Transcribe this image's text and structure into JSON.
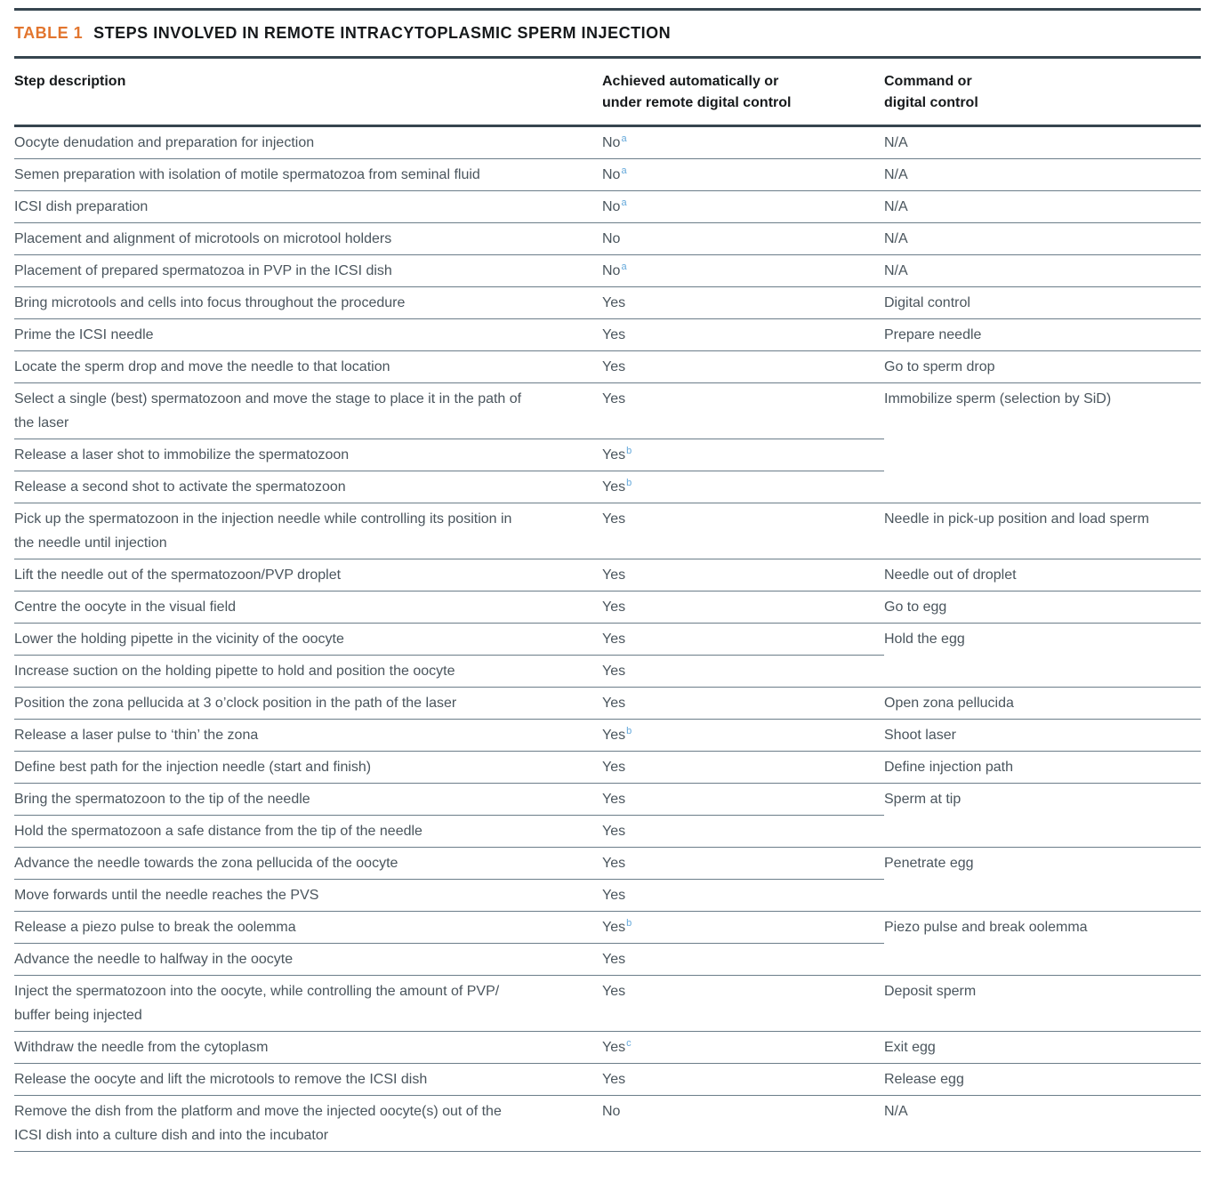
{
  "table": {
    "label": "TABLE 1",
    "title": "STEPS INVOLVED IN REMOTE INTRACYTOPLASMIC SPERM INJECTION",
    "columns": [
      "Step description",
      "Achieved automatically or\nunder remote digital control",
      "Command or\ndigital control"
    ],
    "colors": {
      "accent_orange": "#e2752e",
      "footnote_blue": "#64a8da",
      "rule_dark": "#36454f",
      "rule_light": "#6b7d89",
      "body_text": "#4a555d",
      "heading_text": "#16191b"
    },
    "rows": [
      {
        "step": "Oocyte denudation and preparation for injection",
        "auto": "No",
        "auto_sup": "a",
        "command": "N/A",
        "rowspan": 1
      },
      {
        "step": "Semen preparation with isolation of motile spermatozoa from seminal fluid",
        "auto": "No",
        "auto_sup": "a",
        "command": "N/A",
        "rowspan": 1
      },
      {
        "step": "ICSI dish preparation",
        "auto": "No",
        "auto_sup": "a",
        "command": "N/A",
        "rowspan": 1
      },
      {
        "step": "Placement and alignment of microtools on microtool holders",
        "auto": "No",
        "auto_sup": null,
        "command": "N/A",
        "rowspan": 1
      },
      {
        "step": "Placement of prepared spermatozoa in PVP in the ICSI dish",
        "auto": "No",
        "auto_sup": "a",
        "command": "N/A",
        "rowspan": 1
      },
      {
        "step": "Bring microtools and cells into focus throughout the procedure",
        "auto": "Yes",
        "auto_sup": null,
        "command": "Digital control",
        "rowspan": 1
      },
      {
        "step": "Prime the ICSI needle",
        "auto": "Yes",
        "auto_sup": null,
        "command": "Prepare needle",
        "rowspan": 1
      },
      {
        "step": "Locate the sperm drop and move the needle to that location",
        "auto": "Yes",
        "auto_sup": null,
        "command": "Go to sperm drop",
        "rowspan": 1
      },
      {
        "step": "Select a single (best) spermatozoon and move the stage to place it in the path of\nthe laser",
        "auto": "Yes",
        "auto_sup": null,
        "command": "Immobilize sperm (selection by SiD)",
        "rowspan": 3
      },
      {
        "step": "Release a laser shot to immobilize the spermatozoon",
        "auto": "Yes",
        "auto_sup": "b",
        "command": null,
        "rowspan": 0
      },
      {
        "step": "Release a second shot to activate the spermatozoon",
        "auto": "Yes",
        "auto_sup": "b",
        "command": null,
        "rowspan": 0
      },
      {
        "step": "Pick up the spermatozoon in the injection needle while controlling its position in\nthe needle until injection",
        "auto": "Yes",
        "auto_sup": null,
        "command": "Needle in pick-up position and load sperm",
        "rowspan": 1
      },
      {
        "step": "Lift the needle out of the spermatozoon/PVP droplet",
        "auto": "Yes",
        "auto_sup": null,
        "command": "Needle out of droplet",
        "rowspan": 1
      },
      {
        "step": "Centre the oocyte in the visual field",
        "auto": "Yes",
        "auto_sup": null,
        "command": "Go to egg",
        "rowspan": 1
      },
      {
        "step": "Lower the holding pipette in the vicinity of the oocyte",
        "auto": "Yes",
        "auto_sup": null,
        "command": "Hold the egg",
        "rowspan": 2
      },
      {
        "step": "Increase suction on the holding pipette to hold and position the oocyte",
        "auto": "Yes",
        "auto_sup": null,
        "command": null,
        "rowspan": 0
      },
      {
        "step": "Position the zona pellucida at 3 o’clock position in the path of the laser",
        "auto": "Yes",
        "auto_sup": null,
        "command": "Open zona pellucida",
        "rowspan": 1
      },
      {
        "step": "Release a laser pulse to ‘thin’ the zona",
        "auto": "Yes",
        "auto_sup": "b",
        "command": "Shoot laser",
        "rowspan": 1
      },
      {
        "step": "Define best path for the injection needle (start and finish)",
        "auto": "Yes",
        "auto_sup": null,
        "command": "Define injection path",
        "rowspan": 1
      },
      {
        "step": "Bring the spermatozoon to the tip of the needle",
        "auto": "Yes",
        "auto_sup": null,
        "command": "Sperm at tip",
        "rowspan": 2
      },
      {
        "step": "Hold the spermatozoon a safe distance from the tip of the needle",
        "auto": "Yes",
        "auto_sup": null,
        "command": null,
        "rowspan": 0
      },
      {
        "step": "Advance the needle towards the zona pellucida of the oocyte",
        "auto": "Yes",
        "auto_sup": null,
        "command": "Penetrate egg",
        "rowspan": 2
      },
      {
        "step": "Move forwards until the needle reaches the PVS",
        "auto": "Yes",
        "auto_sup": null,
        "command": null,
        "rowspan": 0
      },
      {
        "step": "Release a piezo pulse to break the oolemma",
        "auto": "Yes",
        "auto_sup": "b",
        "command": "Piezo pulse and break oolemma",
        "rowspan": 2
      },
      {
        "step": "Advance the needle to halfway in the oocyte",
        "auto": "Yes",
        "auto_sup": null,
        "command": null,
        "rowspan": 0
      },
      {
        "step": "Inject the spermatozoon into the oocyte, while controlling the amount of PVP/\nbuffer being injected",
        "auto": "Yes",
        "auto_sup": null,
        "command": "Deposit sperm",
        "rowspan": 1
      },
      {
        "step": "Withdraw the needle from the cytoplasm",
        "auto": "Yes",
        "auto_sup": "c",
        "command": "Exit egg",
        "rowspan": 1
      },
      {
        "step": "Release the oocyte and lift the microtools to remove the ICSI dish",
        "auto": "Yes",
        "auto_sup": null,
        "command": "Release egg",
        "rowspan": 1
      },
      {
        "step": "Remove the dish from the platform and move the injected oocyte(s) out of the\nICSI dish into a culture dish and into the incubator",
        "auto": "No",
        "auto_sup": null,
        "command": "N/A",
        "rowspan": 1
      }
    ]
  }
}
